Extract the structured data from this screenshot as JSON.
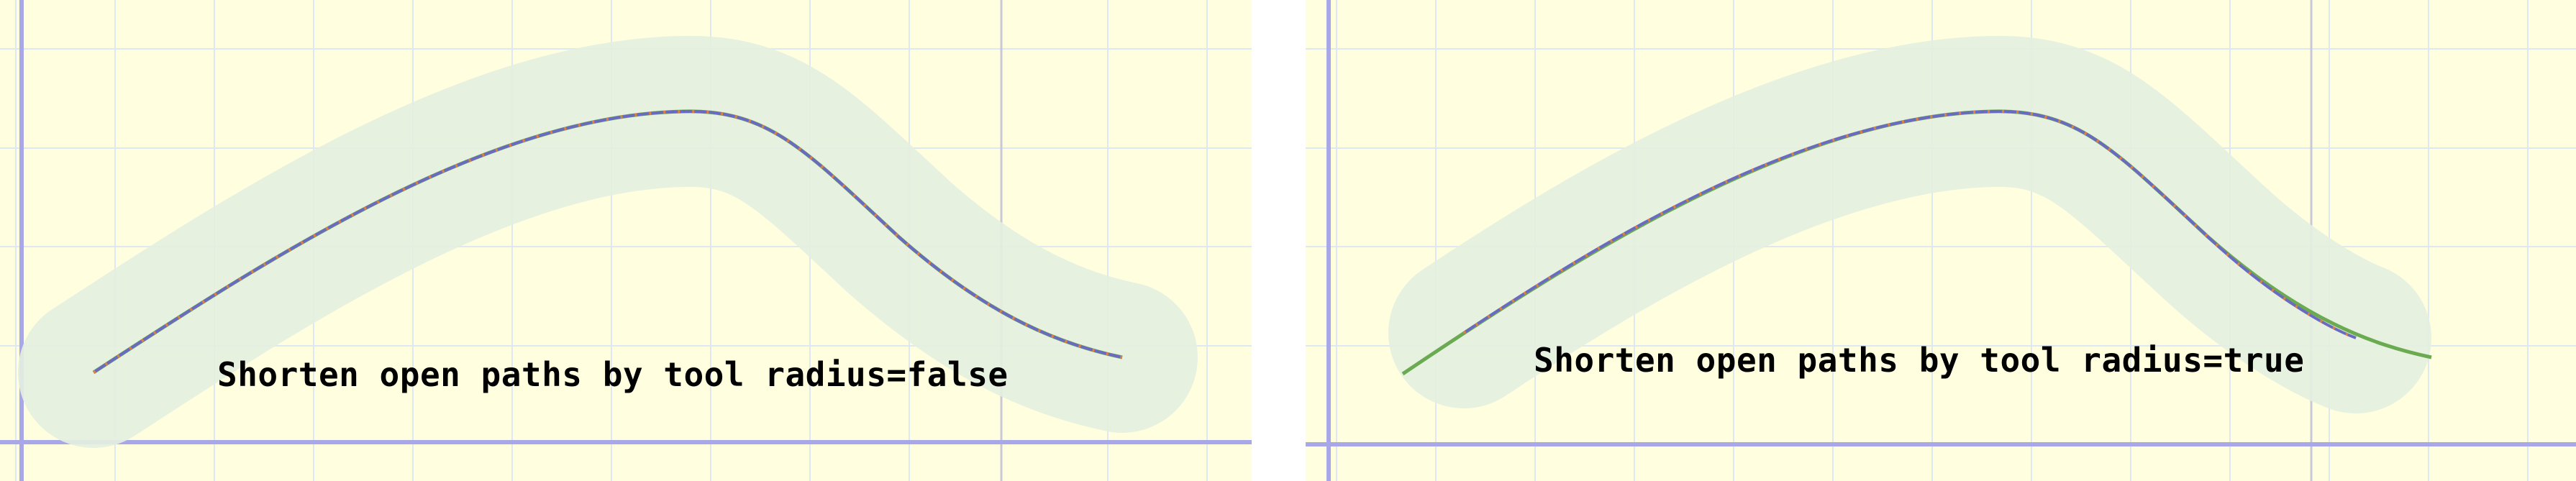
{
  "panels": [
    {
      "caption": "Shorten open paths by tool radius=false",
      "shortened": false
    },
    {
      "caption": "Shorten open paths by tool radius=true",
      "shortened": true
    }
  ],
  "colors": {
    "background": "#ffffe0",
    "grid": "#dde8f2",
    "axis": "#a8a8e8",
    "divider": "#c8c8d8",
    "tool_band": "#e4f0e0",
    "original_path": "#6aaa50",
    "toolpath": "#6a6ac0",
    "toolpath_dots": "#e08040"
  }
}
